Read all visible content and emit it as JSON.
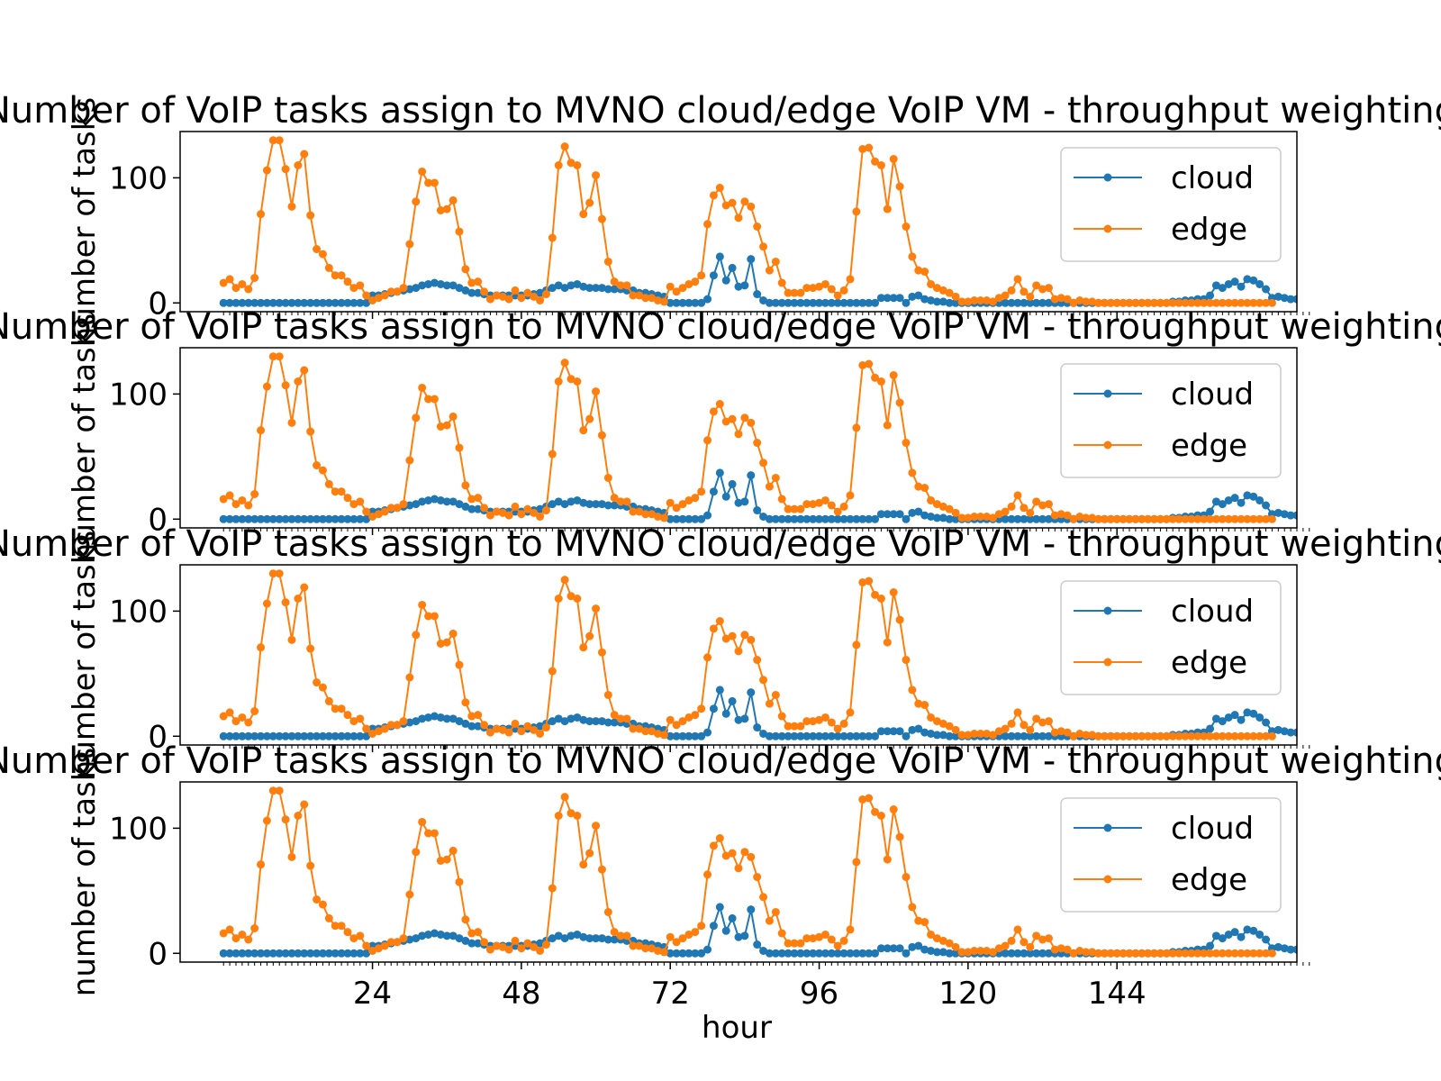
{
  "chart_data": {
    "type": "line",
    "panel_count": 4,
    "title": "Number of VoIP tasks assign to MVNO cloud/edge VoIP VM - throughput weighting",
    "xlabel": "hour",
    "ylabel": "number of tasks",
    "xlim": [
      -7,
      173
    ],
    "ylim": [
      -7,
      137
    ],
    "x_ticks": [
      24,
      48,
      72,
      96,
      120,
      144
    ],
    "y_ticks": [
      0,
      100
    ],
    "grid": false,
    "legend": "upper right",
    "series": [
      {
        "name": "cloud",
        "color": "#1f77b4",
        "values": [
          0,
          0,
          0,
          0,
          0,
          0,
          0,
          0,
          0,
          0,
          0,
          0,
          0,
          0,
          0,
          0,
          0,
          0,
          0,
          0,
          0,
          0,
          0,
          0,
          6,
          6,
          7,
          8,
          9,
          10,
          11,
          12,
          14,
          15,
          16,
          15,
          14,
          14,
          12,
          10,
          8,
          8,
          7,
          6,
          6,
          6,
          6,
          6,
          6,
          6,
          7,
          8,
          10,
          12,
          14,
          12,
          14,
          15,
          13,
          12,
          12,
          12,
          11,
          11,
          11,
          10,
          10,
          8,
          8,
          7,
          6,
          5,
          0,
          0,
          0,
          0,
          0,
          0,
          3,
          22,
          37,
          18,
          28,
          13,
          14,
          35,
          7,
          2,
          0,
          0,
          0,
          0,
          0,
          0,
          0,
          0,
          0,
          0,
          0,
          0,
          0,
          0,
          0,
          0,
          0,
          0,
          4,
          4,
          4,
          4,
          0,
          5,
          6,
          3,
          2,
          1,
          1,
          0,
          0,
          0,
          0,
          0,
          0,
          0,
          0,
          0,
          0,
          0,
          0,
          0,
          0,
          0,
          0,
          0,
          0,
          0,
          0,
          0,
          0,
          0,
          0,
          0,
          0,
          0,
          0,
          0,
          0,
          0,
          0,
          0,
          0,
          0,
          0,
          1,
          1,
          2,
          2,
          3,
          3,
          6,
          14,
          12,
          15,
          17,
          13,
          19,
          18,
          15,
          11,
          4,
          5,
          4,
          3,
          3,
          2,
          2
        ]
      },
      {
        "name": "edge",
        "color": "#ff7f0e",
        "values": [
          16,
          19,
          12,
          15,
          11,
          20,
          71,
          106,
          130,
          130,
          107,
          77,
          110,
          119,
          70,
          43,
          39,
          28,
          22,
          22,
          17,
          12,
          14,
          6,
          2,
          4,
          6,
          9,
          9,
          12,
          47,
          81,
          105,
          96,
          96,
          74,
          75,
          82,
          57,
          27,
          16,
          17,
          9,
          3,
          6,
          5,
          3,
          10,
          4,
          8,
          5,
          2,
          7,
          52,
          110,
          125,
          112,
          110,
          71,
          80,
          102,
          67,
          33,
          17,
          14,
          14,
          6,
          6,
          4,
          4,
          2,
          1,
          13,
          9,
          12,
          15,
          17,
          22,
          63,
          86,
          92,
          78,
          80,
          68,
          81,
          77,
          61,
          45,
          26,
          33,
          16,
          8,
          8,
          8,
          12,
          12,
          13,
          15,
          11,
          6,
          10,
          19,
          73,
          123,
          124,
          113,
          110,
          75,
          115,
          93,
          61,
          37,
          26,
          25,
          15,
          12,
          10,
          8,
          5,
          1,
          1,
          2,
          2,
          2,
          1,
          4,
          6,
          10,
          19,
          9,
          5,
          14,
          11,
          12,
          3,
          4,
          3,
          0,
          2,
          1,
          1,
          0,
          0,
          0,
          0,
          0,
          0,
          0,
          0,
          0,
          0,
          0,
          0,
          0,
          0,
          0,
          0,
          0,
          0,
          0,
          0,
          0,
          0,
          0,
          0,
          0,
          0,
          0,
          0,
          0
        ]
      }
    ]
  }
}
